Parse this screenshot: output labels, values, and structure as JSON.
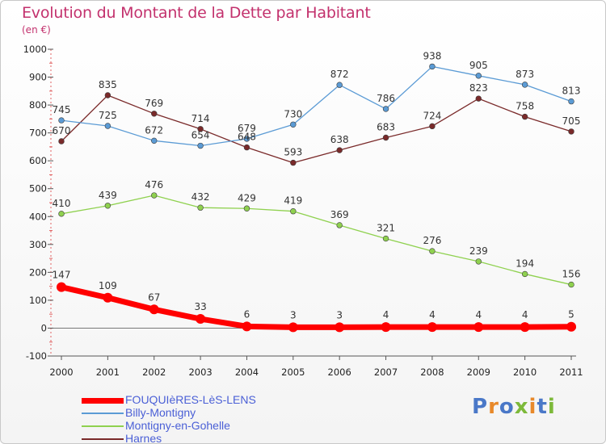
{
  "page": {
    "title": "Evolution du Montant de la Dette par Habitant",
    "unit": "(en €)"
  },
  "logo": {
    "text": "Proxiti",
    "colors": [
      "#4a78c8",
      "#e8892a",
      "#4a78c8",
      "#7db93a",
      "#e8892a",
      "#4a78c8",
      "#7db93a"
    ]
  },
  "chart_data": {
    "type": "line",
    "title": "Evolution du Montant de la Dette par Habitant",
    "subtitle": "(en €)",
    "xlabel": "",
    "ylabel": "",
    "x": [
      "2000",
      "2001",
      "2002",
      "2003",
      "2004",
      "2005",
      "2006",
      "2007",
      "2008",
      "2009",
      "2010",
      "2011"
    ],
    "ylim": [
      -100,
      1000
    ],
    "yticks": [
      "-100",
      "0",
      "100",
      "200",
      "300",
      "400",
      "500",
      "600",
      "700",
      "800",
      "900",
      "1000"
    ],
    "grid": false,
    "legend_position": "bottom-left",
    "series": [
      {
        "name": "FOUQUIèRES-LèS-LENS",
        "color": "#ff0000",
        "values": [
          147,
          109,
          67,
          33,
          6,
          3,
          3,
          4,
          4,
          4,
          4,
          5
        ]
      },
      {
        "name": "Billy-Montigny",
        "color": "#5b9bd5",
        "values": [
          745,
          725,
          672,
          654,
          679,
          730,
          872,
          786,
          938,
          905,
          873,
          813
        ]
      },
      {
        "name": "Montigny-en-Gohelle",
        "color": "#8fd14f",
        "values": [
          410,
          439,
          476,
          432,
          429,
          419,
          369,
          321,
          276,
          239,
          194,
          156
        ]
      },
      {
        "name": "Harnes",
        "color": "#7a2a2a",
        "values": [
          670,
          835,
          769,
          714,
          648,
          593,
          638,
          683,
          724,
          823,
          758,
          705
        ]
      }
    ]
  }
}
